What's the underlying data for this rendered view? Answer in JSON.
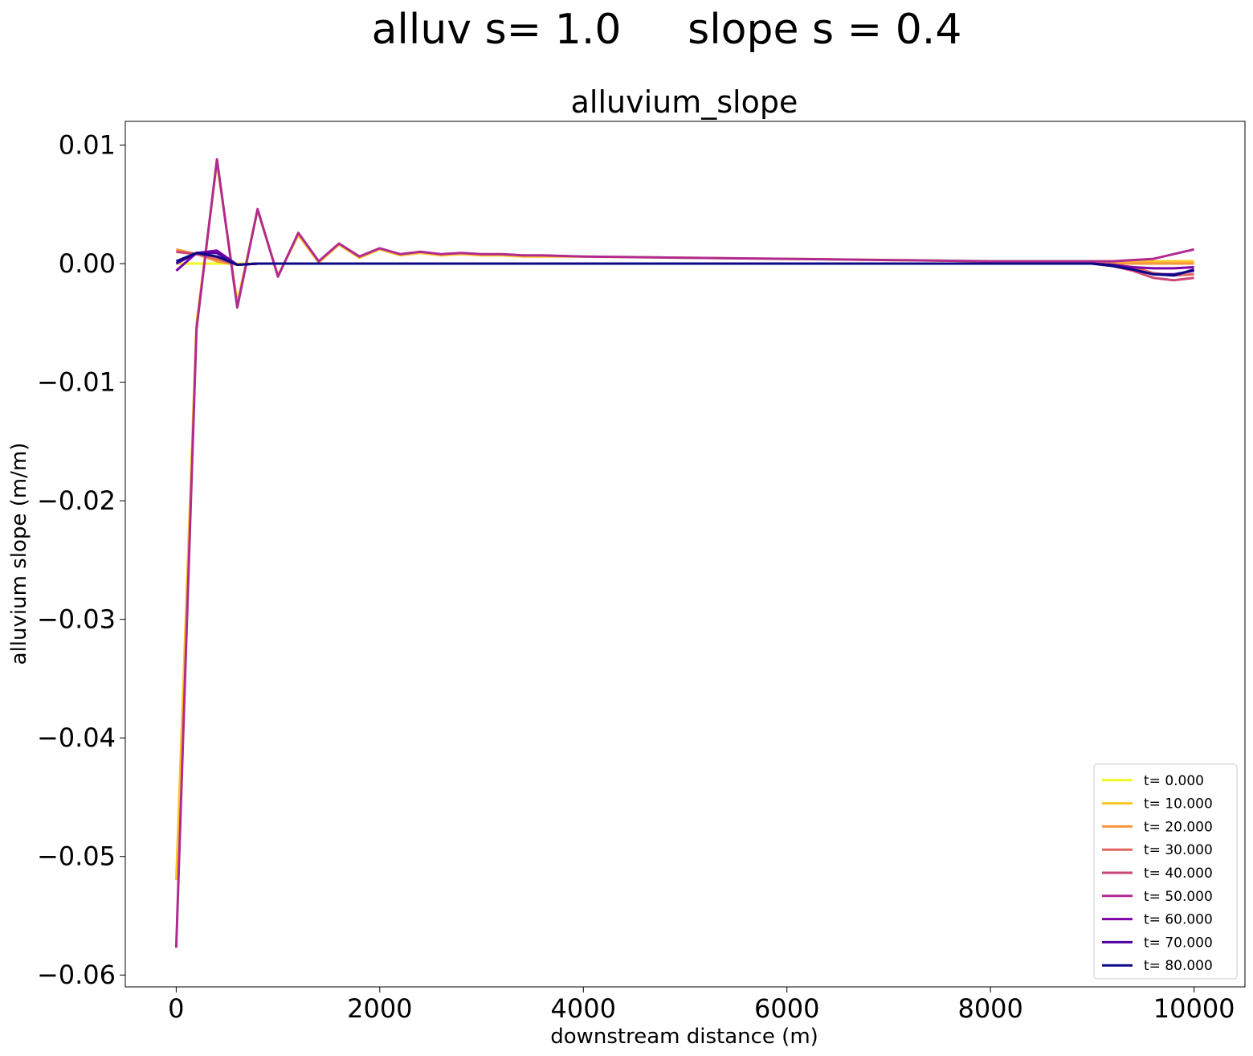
{
  "figure": {
    "suptitle": "alluv s= 1.0     slope s = 0.4"
  },
  "chart_data": {
    "type": "line",
    "title": "alluvium_slope",
    "xlabel": "downstream distance (m)",
    "ylabel": "alluvium slope (m/m)",
    "xlim": [
      -500,
      10500
    ],
    "ylim": [
      -0.061,
      0.012
    ],
    "xticks": [
      0,
      2000,
      4000,
      6000,
      8000,
      10000
    ],
    "xtick_labels": [
      "0",
      "2000",
      "4000",
      "6000",
      "8000",
      "10000"
    ],
    "yticks": [
      0.01,
      0.0,
      -0.01,
      -0.02,
      -0.03,
      -0.04,
      -0.05,
      -0.06
    ],
    "ytick_labels": [
      "0.01",
      "0.00",
      "−0.01",
      "−0.02",
      "−0.03",
      "−0.04",
      "−0.05",
      "−0.06"
    ],
    "grid": false,
    "legend_position": "bottom-right",
    "series": [
      {
        "name": "t= 0.000",
        "color": "#f0f921",
        "points": [
          [
            0,
            0.0
          ],
          [
            200,
            0.0
          ],
          [
            400,
            0.0
          ],
          [
            600,
            0.0
          ],
          [
            10000,
            0.0
          ]
        ]
      },
      {
        "name": "t= 10.000",
        "color": "#fdc527",
        "points": [
          [
            0,
            -0.052
          ],
          [
            200,
            -0.005
          ],
          [
            400,
            0.0085
          ],
          [
            600,
            -0.0033
          ],
          [
            800,
            0.0045
          ],
          [
            1000,
            -0.001
          ],
          [
            1200,
            0.0024
          ],
          [
            1400,
            0.0001
          ],
          [
            1600,
            0.0016
          ],
          [
            1800,
            0.0005
          ],
          [
            2000,
            0.0012
          ],
          [
            2200,
            0.0007
          ],
          [
            2400,
            0.0009
          ],
          [
            2600,
            0.0007
          ],
          [
            2800,
            0.0008
          ],
          [
            3000,
            0.0007
          ],
          [
            3200,
            0.0007
          ],
          [
            3400,
            0.0006
          ],
          [
            3600,
            0.0006
          ],
          [
            4000,
            0.0006
          ],
          [
            5000,
            0.0005
          ],
          [
            6000,
            0.0004
          ],
          [
            7000,
            0.0003
          ],
          [
            8000,
            0.0002
          ],
          [
            9000,
            0.0002
          ],
          [
            9400,
            0.0002
          ],
          [
            9600,
            0.0002
          ],
          [
            9800,
            0.0002
          ],
          [
            10000,
            0.0002
          ]
        ]
      },
      {
        "name": "t= 20.000",
        "color": "#f89540",
        "points": [
          [
            0,
            0.0012
          ],
          [
            200,
            0.0008
          ],
          [
            400,
            0.0002
          ],
          [
            600,
            -0.0001
          ],
          [
            800,
            0.0
          ],
          [
            1000,
            0.0
          ],
          [
            2000,
            0.0
          ],
          [
            4000,
            0.0
          ],
          [
            6000,
            0.0
          ],
          [
            8000,
            0.0
          ],
          [
            9000,
            0.0
          ],
          [
            9400,
            0.0
          ],
          [
            9600,
            0.0
          ],
          [
            10000,
            0.0
          ]
        ]
      },
      {
        "name": "t= 30.000",
        "color": "#e16462",
        "points": [
          [
            0,
            0.001
          ],
          [
            200,
            0.0008
          ],
          [
            400,
            0.0004
          ],
          [
            600,
            -0.0001
          ],
          [
            800,
            0.0
          ],
          [
            1000,
            0.0
          ],
          [
            4000,
            0.0
          ],
          [
            8000,
            0.0
          ],
          [
            9000,
            0.0
          ],
          [
            9400,
            -0.0003
          ],
          [
            9600,
            -0.0008
          ],
          [
            9800,
            -0.001
          ],
          [
            10000,
            -0.0009
          ]
        ]
      },
      {
        "name": "t= 40.000",
        "color": "#cc4778",
        "points": [
          [
            0,
            0.001
          ],
          [
            200,
            0.0008
          ],
          [
            400,
            0.0006
          ],
          [
            600,
            -0.0001
          ],
          [
            800,
            0.0
          ],
          [
            1000,
            0.0
          ],
          [
            4000,
            0.0
          ],
          [
            8000,
            0.0
          ],
          [
            9000,
            0.0
          ],
          [
            9200,
            -0.0002
          ],
          [
            9400,
            -0.0006
          ],
          [
            9600,
            -0.0012
          ],
          [
            9800,
            -0.0014
          ],
          [
            10000,
            -0.0012
          ]
        ]
      },
      {
        "name": "t= 50.000",
        "color": "#b12a90",
        "points": [
          [
            0,
            -0.0577
          ],
          [
            200,
            -0.0055
          ],
          [
            400,
            0.0088
          ],
          [
            600,
            -0.0037
          ],
          [
            800,
            0.0046
          ],
          [
            1000,
            -0.0011
          ],
          [
            1200,
            0.0026
          ],
          [
            1400,
            0.0002
          ],
          [
            1600,
            0.0017
          ],
          [
            1800,
            0.0006
          ],
          [
            2000,
            0.0013
          ],
          [
            2200,
            0.0008
          ],
          [
            2400,
            0.001
          ],
          [
            2600,
            0.0008
          ],
          [
            2800,
            0.0009
          ],
          [
            3000,
            0.0008
          ],
          [
            3200,
            0.0008
          ],
          [
            3400,
            0.0007
          ],
          [
            3600,
            0.0007
          ],
          [
            4000,
            0.0006
          ],
          [
            5000,
            0.0005
          ],
          [
            6000,
            0.0004
          ],
          [
            7000,
            0.0003
          ],
          [
            8000,
            0.0002
          ],
          [
            9000,
            0.0002
          ],
          [
            9200,
            0.0002
          ],
          [
            9400,
            0.0003
          ],
          [
            9600,
            0.0004
          ],
          [
            9800,
            0.0008
          ],
          [
            10000,
            0.0012
          ]
        ]
      },
      {
        "name": "t= 60.000",
        "color": "#7e03a8",
        "points": [
          [
            0,
            -0.0006
          ],
          [
            200,
            0.0009
          ],
          [
            400,
            0.0011
          ],
          [
            600,
            -0.0001
          ],
          [
            800,
            0.0
          ],
          [
            1000,
            0.0
          ],
          [
            4000,
            0.0
          ],
          [
            8000,
            0.0
          ],
          [
            9000,
            0.0
          ],
          [
            9200,
            -0.0001
          ],
          [
            9400,
            -0.0003
          ],
          [
            9600,
            -0.0004
          ],
          [
            9800,
            -0.0004
          ],
          [
            10000,
            -0.0003
          ]
        ]
      },
      {
        "name": "t= 70.000",
        "color": "#4c02a1",
        "points": [
          [
            0,
            0.0
          ],
          [
            200,
            0.0009
          ],
          [
            400,
            0.0009
          ],
          [
            600,
            -0.0001
          ],
          [
            800,
            0.0
          ],
          [
            1000,
            0.0
          ],
          [
            4000,
            0.0
          ],
          [
            8000,
            0.0
          ],
          [
            9000,
            0.0
          ],
          [
            9200,
            -0.0001
          ],
          [
            9400,
            -0.0005
          ],
          [
            9600,
            -0.0009
          ],
          [
            9800,
            -0.0009
          ],
          [
            10000,
            -0.0006
          ]
        ]
      },
      {
        "name": "t= 80.000",
        "color": "#0d0887",
        "points": [
          [
            0,
            0.0002
          ],
          [
            200,
            0.0009
          ],
          [
            400,
            0.0006
          ],
          [
            600,
            -0.0001
          ],
          [
            800,
            0.0
          ],
          [
            1000,
            0.0
          ],
          [
            4000,
            0.0
          ],
          [
            8000,
            0.0
          ],
          [
            9000,
            0.0
          ],
          [
            9200,
            -0.0002
          ],
          [
            9400,
            -0.0005
          ],
          [
            9600,
            -0.0009
          ],
          [
            9800,
            -0.001
          ],
          [
            10000,
            -0.0005
          ]
        ]
      }
    ]
  }
}
